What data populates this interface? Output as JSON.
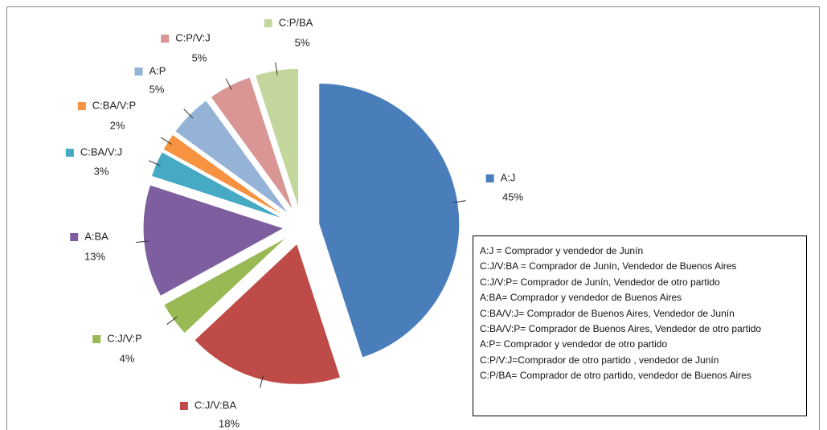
{
  "chart_data": {
    "type": "pie",
    "categories": [
      "A:J",
      "C:J/V:BA",
      "C:J/V:P",
      "A:BA",
      "C:BA/V:J",
      "C:BA/V:P",
      "A:P",
      "C:P/V:J",
      "C:P/BA"
    ],
    "values": [
      45,
      18,
      4,
      13,
      3,
      2,
      5,
      5,
      5
    ],
    "value_labels": [
      "45%",
      "18%",
      "4%",
      "13%",
      "3%",
      "2%",
      "5%",
      "5%",
      "5%"
    ],
    "colors": [
      "#4a7ebb",
      "#be4b48",
      "#98b954",
      "#7d5fa0",
      "#46aac5",
      "#f69240",
      "#95b3d7",
      "#d99694",
      "#c3d69b"
    ],
    "notes": [
      "A:J = Comprador y vendedor de Junín",
      "C:J/V:BA = Comprador de Junín, Vendedor de Buenos Aires",
      "C:J/V:P= Comprador de Junín, Vendedor de otro partido",
      "A:BA= Comprador y vendedor de Buenos Aires",
      "C:BA/V:J= Comprador de Buenos Aires, Vendedor de Junín",
      "C:BA/V:P= Comprador de Buenos Aires, Vendedor de otro partido",
      "A:P= Comprador y vendedor de otro partido",
      "C:P/V:J=Comprador de otro partido , vendedor de Junín",
      "C:P/BA= Comprador de otro partido, vendedor de Buenos Aires"
    ]
  }
}
